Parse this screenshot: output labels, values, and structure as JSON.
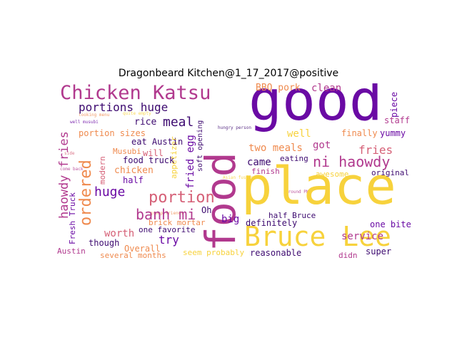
{
  "title": "Dragonbeard Kitchen@1_17_2017@positive",
  "colors": {
    "purple": "#6a0aa4",
    "magenta": "#b1398e",
    "pink": "#d55f76",
    "orange": "#ef8a4e",
    "yellow": "#f7d23c",
    "dark": "#3d0a70"
  },
  "words": {
    "good": "good",
    "food": "food",
    "place": "place",
    "bruce_lee": "Bruce Lee",
    "chicken_katsu": "Chicken Katsu",
    "ni_haowdy": "ni haowdy",
    "ordered": "ordered",
    "portion": "portion",
    "banh_mi": "banh mi",
    "huge": "huge",
    "portions_huge": "portions huge",
    "meal": "meal",
    "fries": "fries",
    "haowdy_fries": "haowdy fries",
    "two_meals": "two meals",
    "came": "came",
    "service": "service",
    "well": "well",
    "got": "got",
    "finally": "finally",
    "yummy": "yummy",
    "staff": "staff",
    "piece": "piece",
    "clean": "clean",
    "bbq_pork": "BBQ pork",
    "portion_sizes": "portion sizes",
    "rice": "rice",
    "chicken": "chicken",
    "fried_egg": "fried egg",
    "appetizer": "appetizer",
    "eat_austin": "eat Austin",
    "food_truck": "food truck",
    "musubi": "Musubi",
    "modern": "modern",
    "will": "will",
    "half": "half",
    "worth": "worth",
    "try": "try",
    "overall": "Overall",
    "one_favorite": "one favorite",
    "though": "though",
    "fresh_truck": "Fresh Truck",
    "austin": "Austin",
    "several_months": "several months",
    "seem_probably": "seem probably",
    "reasonable": "reasonable",
    "super": "super",
    "didn": "didn",
    "one_bite": "one bite",
    "definitely": "definitely",
    "half_bruce": "half Bruce",
    "big": "big",
    "oh": "Oh",
    "brick_mortar": "brick mortar",
    "original": "original",
    "awesome": "awesome",
    "finish": "finish",
    "asian_fusion": "Asian fusion",
    "eating": "eating",
    "come_back": "come back",
    "side": "side",
    "quite_empty": "quite empty",
    "looking_menu": "looking menu",
    "well_musubi": "well musubi",
    "hungry_person": "hungry person",
    "around_pm": "around PM",
    "soft_opening": "soft opening",
    "group_friends": "group friends"
  }
}
